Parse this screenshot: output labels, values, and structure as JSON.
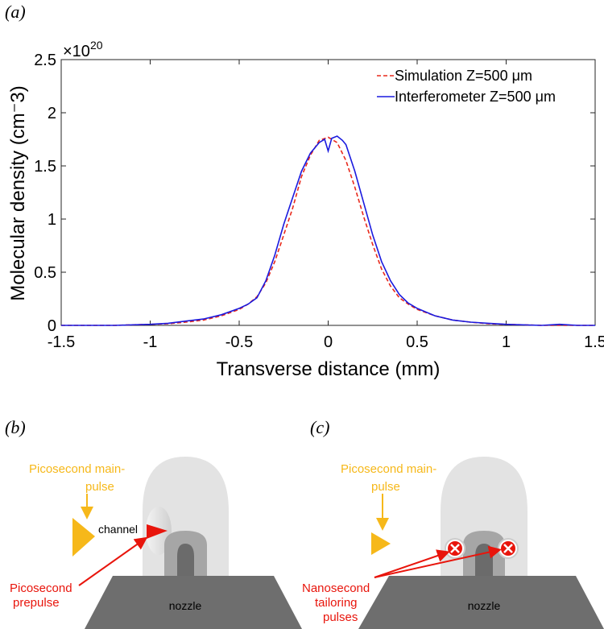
{
  "panels": {
    "a": "(a)",
    "b": "(b)",
    "c": "(c)"
  },
  "chart_data": {
    "type": "line",
    "xlabel": "Transverse distance (mm)",
    "ylabel": "Molecular density (cm⁻3)",
    "y_multiplier": "×10",
    "y_exponent": "20",
    "xlim": [
      -1.5,
      1.5
    ],
    "ylim": [
      0,
      2.5
    ],
    "xticks": [
      -1.5,
      -1,
      -0.5,
      0,
      0.5,
      1,
      1.5
    ],
    "xtick_labels": [
      "-1.5",
      "-1",
      "-0.5",
      "0",
      "0.5",
      "1",
      "1.5"
    ],
    "yticks": [
      0,
      0.5,
      1,
      1.5,
      2,
      2.5
    ],
    "ytick_labels": [
      "0",
      "0.5",
      "1",
      "1.5",
      "2",
      "2.5"
    ],
    "grid": false,
    "legend_position": "top-right",
    "series": [
      {
        "name": "Simulation Z=500 μm",
        "color": "#e8291c",
        "style": "dashed",
        "x": [
          -1.5,
          -1.2,
          -1.0,
          -0.9,
          -0.8,
          -0.7,
          -0.6,
          -0.5,
          -0.45,
          -0.4,
          -0.35,
          -0.3,
          -0.25,
          -0.2,
          -0.15,
          -0.1,
          -0.05,
          0.0,
          0.05,
          0.1,
          0.15,
          0.2,
          0.25,
          0.3,
          0.35,
          0.4,
          0.45,
          0.5,
          0.6,
          0.7,
          0.8,
          0.9,
          1.0,
          1.2,
          1.5
        ],
        "values": [
          0.0,
          0.0,
          0.01,
          0.015,
          0.03,
          0.05,
          0.09,
          0.15,
          0.2,
          0.27,
          0.4,
          0.6,
          0.85,
          1.1,
          1.4,
          1.6,
          1.74,
          1.77,
          1.72,
          1.55,
          1.3,
          1.02,
          0.76,
          0.53,
          0.37,
          0.26,
          0.2,
          0.15,
          0.09,
          0.05,
          0.03,
          0.015,
          0.01,
          0.0,
          0.0
        ]
      },
      {
        "name": "Interferometer Z=500 μm",
        "color": "#1a1adf",
        "style": "solid",
        "x": [
          -1.5,
          -1.2,
          -1.0,
          -0.9,
          -0.8,
          -0.7,
          -0.6,
          -0.5,
          -0.45,
          -0.4,
          -0.35,
          -0.3,
          -0.25,
          -0.2,
          -0.15,
          -0.1,
          -0.05,
          -0.02,
          0.0,
          0.02,
          0.05,
          0.08,
          0.1,
          0.15,
          0.2,
          0.25,
          0.3,
          0.35,
          0.4,
          0.45,
          0.5,
          0.6,
          0.7,
          0.8,
          0.9,
          1.0,
          1.2,
          1.3,
          1.4,
          1.5
        ],
        "values": [
          0.0,
          0.0,
          0.01,
          0.02,
          0.04,
          0.06,
          0.1,
          0.16,
          0.2,
          0.26,
          0.42,
          0.66,
          0.95,
          1.2,
          1.45,
          1.62,
          1.72,
          1.75,
          1.64,
          1.76,
          1.78,
          1.74,
          1.7,
          1.45,
          1.15,
          0.85,
          0.6,
          0.42,
          0.29,
          0.21,
          0.16,
          0.09,
          0.05,
          0.03,
          0.02,
          0.01,
          0.0,
          0.01,
          0.0,
          0.0
        ]
      }
    ]
  },
  "diagram_b": {
    "main_pulse_label_line1": "Picosecond main-",
    "main_pulse_label_line2": "pulse",
    "channel_label": "channel",
    "prepulse_label_line1": "Picosecond",
    "prepulse_label_line2": "prepulse",
    "nozzle_label": "nozzle",
    "colors": {
      "pulse": "#f6b81a",
      "red": "#e8150c",
      "gas_outer": "#e3e3e3",
      "gas_mid": "#a6a6a6",
      "gas_inner": "#6b6b6b",
      "nozzle": "#6e6e6e"
    }
  },
  "diagram_c": {
    "main_pulse_label_line1": "Picosecond main-",
    "main_pulse_label_line2": "pulse",
    "tailoring_label_line1": "Nanosecond",
    "tailoring_label_line2": "tailoring",
    "tailoring_label_line3": "pulses",
    "nozzle_label": "nozzle"
  }
}
